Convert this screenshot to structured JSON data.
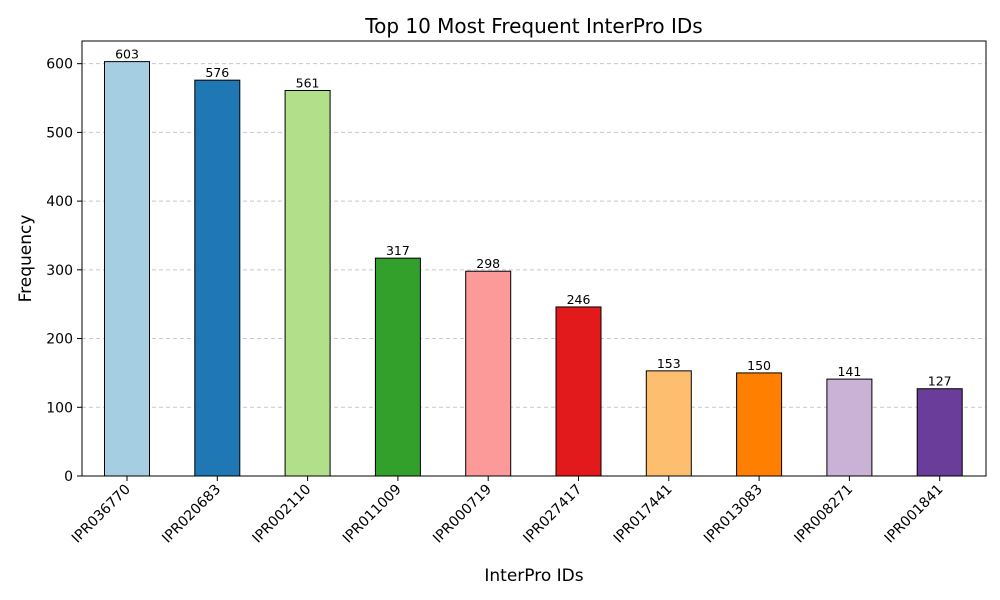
{
  "chart_data": {
    "type": "bar",
    "title": "Top 10 Most Frequent InterPro IDs",
    "xlabel": "InterPro IDs",
    "ylabel": "Frequency",
    "categories": [
      "IPR036770",
      "IPR020683",
      "IPR002110",
      "IPR011009",
      "IPR000719",
      "IPR027417",
      "IPR017441",
      "IPR013083",
      "IPR008271",
      "IPR001841"
    ],
    "values": [
      603,
      576,
      561,
      317,
      298,
      246,
      153,
      150,
      141,
      127
    ],
    "colors": [
      "#a6cee3",
      "#1f78b4",
      "#b2df8a",
      "#33a02c",
      "#fb9a99",
      "#e31a1c",
      "#fdbf6f",
      "#ff7f00",
      "#cab2d6",
      "#6a3d9a"
    ],
    "ylim": [
      0,
      633
    ],
    "yticks": [
      0,
      100,
      200,
      300,
      400,
      500,
      600
    ],
    "grid": "y-dashed",
    "data_labels": true
  }
}
